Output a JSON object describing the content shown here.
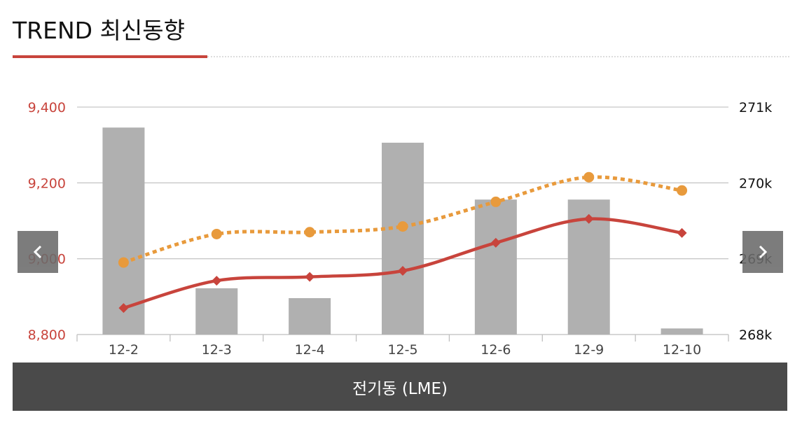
{
  "header": {
    "title": "TREND 최신동향"
  },
  "footer": {
    "label": "전기동 (LME)"
  },
  "navigation": {
    "prev_icon": "chevron-left-icon",
    "next_icon": "chevron-right-icon"
  },
  "chart_data": {
    "type": "bar",
    "categories": [
      "12-2",
      "12-3",
      "12-4",
      "12-5",
      "12-6",
      "12-9",
      "12-10"
    ],
    "y_left": {
      "ticks": [
        "8,800",
        "9,000",
        "9,200",
        "9,400"
      ],
      "ylim": [
        8800,
        9400
      ],
      "color": "#c8443c"
    },
    "y_right": {
      "ticks": [
        "268k",
        "269k",
        "270k",
        "271k"
      ],
      "ylim": [
        268000,
        271000
      ],
      "color": "#111111"
    },
    "series": [
      {
        "kind": "bar",
        "axis": "right",
        "color": "#b0b0b0",
        "values": [
          270730,
          268610,
          268480,
          270530,
          269780,
          269780,
          268080
        ]
      },
      {
        "kind": "line",
        "style": "dotted",
        "marker": "circle",
        "axis": "left",
        "color": "#e89a3c",
        "values": [
          8990,
          9065,
          9070,
          9085,
          9150,
          9215,
          9180
        ]
      },
      {
        "kind": "line",
        "style": "solid",
        "marker": "diamond",
        "axis": "left",
        "color": "#c8443c",
        "values": [
          8870,
          8942,
          8952,
          8968,
          9042,
          9105,
          9068
        ]
      }
    ],
    "grid": true,
    "legend": "none"
  }
}
